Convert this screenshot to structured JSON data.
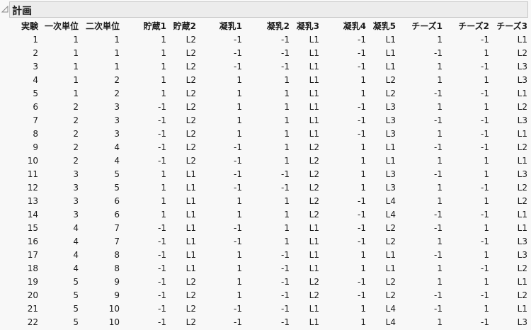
{
  "outline": {
    "title": "計画"
  },
  "table": {
    "columns": [
      "実験",
      "一次単位",
      "二次単位",
      "貯蔵1",
      "貯蔵2",
      "凝乳1",
      "凝乳2",
      "凝乳3",
      "凝乳4",
      "凝乳5",
      "チーズ1",
      "チーズ2",
      "チーズ3"
    ],
    "rows": [
      [
        "1",
        "1",
        "1",
        "1",
        "L2",
        "-1",
        "-1",
        "L1",
        "-1",
        "L1",
        "1",
        "-1",
        "L1"
      ],
      [
        "2",
        "1",
        "1",
        "1",
        "L2",
        "-1",
        "-1",
        "L1",
        "-1",
        "L1",
        "-1",
        "1",
        "L2"
      ],
      [
        "3",
        "1",
        "1",
        "1",
        "L2",
        "-1",
        "-1",
        "L1",
        "-1",
        "L1",
        "1",
        "-1",
        "L3"
      ],
      [
        "4",
        "1",
        "2",
        "1",
        "L2",
        "1",
        "1",
        "L1",
        "1",
        "L2",
        "1",
        "1",
        "L3"
      ],
      [
        "5",
        "1",
        "2",
        "1",
        "L2",
        "1",
        "1",
        "L1",
        "1",
        "L2",
        "-1",
        "-1",
        "L1"
      ],
      [
        "6",
        "2",
        "3",
        "-1",
        "L2",
        "1",
        "1",
        "L1",
        "-1",
        "L3",
        "1",
        "1",
        "L2"
      ],
      [
        "7",
        "2",
        "3",
        "-1",
        "L2",
        "1",
        "1",
        "L1",
        "-1",
        "L3",
        "-1",
        "-1",
        "L3"
      ],
      [
        "8",
        "2",
        "3",
        "-1",
        "L2",
        "1",
        "1",
        "L1",
        "-1",
        "L3",
        "1",
        "-1",
        "L1"
      ],
      [
        "9",
        "2",
        "4",
        "-1",
        "L2",
        "-1",
        "1",
        "L2",
        "1",
        "L1",
        "-1",
        "-1",
        "L2"
      ],
      [
        "10",
        "2",
        "4",
        "-1",
        "L2",
        "-1",
        "1",
        "L2",
        "1",
        "L1",
        "1",
        "1",
        "L1"
      ],
      [
        "11",
        "3",
        "5",
        "1",
        "L1",
        "-1",
        "-1",
        "L2",
        "1",
        "L3",
        "-1",
        "1",
        "L3"
      ],
      [
        "12",
        "3",
        "5",
        "1",
        "L1",
        "-1",
        "-1",
        "L2",
        "1",
        "L3",
        "1",
        "-1",
        "L2"
      ],
      [
        "13",
        "3",
        "6",
        "1",
        "L1",
        "1",
        "1",
        "L2",
        "-1",
        "L4",
        "1",
        "1",
        "L2"
      ],
      [
        "14",
        "3",
        "6",
        "1",
        "L1",
        "1",
        "1",
        "L2",
        "-1",
        "L4",
        "-1",
        "-1",
        "L1"
      ],
      [
        "15",
        "4",
        "7",
        "-1",
        "L1",
        "-1",
        "1",
        "L1",
        "-1",
        "L2",
        "-1",
        "1",
        "L1"
      ],
      [
        "16",
        "4",
        "7",
        "-1",
        "L1",
        "-1",
        "1",
        "L1",
        "-1",
        "L2",
        "1",
        "-1",
        "L3"
      ],
      [
        "17",
        "4",
        "8",
        "-1",
        "L1",
        "1",
        "-1",
        "L1",
        "1",
        "L1",
        "-1",
        "1",
        "L3"
      ],
      [
        "18",
        "4",
        "8",
        "-1",
        "L1",
        "1",
        "-1",
        "L1",
        "1",
        "L1",
        "1",
        "-1",
        "L2"
      ],
      [
        "19",
        "5",
        "9",
        "-1",
        "L2",
        "1",
        "-1",
        "L2",
        "-1",
        "L2",
        "1",
        "1",
        "L1"
      ],
      [
        "20",
        "5",
        "9",
        "-1",
        "L2",
        "1",
        "-1",
        "L2",
        "-1",
        "L2",
        "-1",
        "-1",
        "L2"
      ],
      [
        "21",
        "5",
        "10",
        "-1",
        "L2",
        "-1",
        "-1",
        "L1",
        "1",
        "L4",
        "-1",
        "1",
        "L1"
      ],
      [
        "22",
        "5",
        "10",
        "-1",
        "L2",
        "-1",
        "-1",
        "L1",
        "1",
        "L4",
        "1",
        "-1",
        "L3"
      ]
    ]
  }
}
